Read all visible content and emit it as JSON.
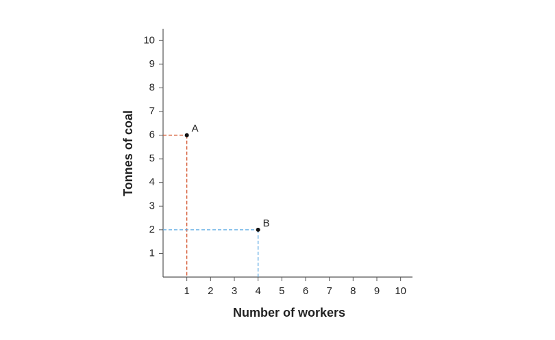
{
  "chart_data": {
    "type": "scatter",
    "x_label": "Number of workers",
    "y_label": "Tonnes of coal",
    "xlim": [
      0,
      10.5
    ],
    "ylim": [
      0,
      10.5
    ],
    "xticks": [
      1,
      2,
      3,
      4,
      5,
      6,
      7,
      8,
      9,
      10
    ],
    "yticks": [
      1,
      2,
      3,
      4,
      5,
      6,
      7,
      8,
      9,
      10
    ],
    "guides": true,
    "series": [
      {
        "name": "A",
        "color": "#d4532c",
        "x": [
          1
        ],
        "values": [
          6
        ]
      },
      {
        "name": "B",
        "color": "#5aa8e4",
        "x": [
          4
        ],
        "values": [
          2
        ]
      }
    ]
  }
}
